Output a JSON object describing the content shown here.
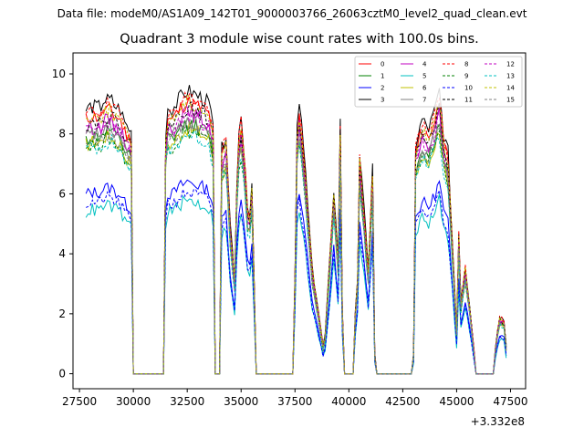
{
  "figure": {
    "suptitle": "Data file: modeM0/AS1A09_142T01_9000003766_26063cztM0_level2_quad_clean.evt"
  },
  "chart_data": {
    "type": "line",
    "title": "Quadrant 3 module wise count rates with 100.0s bins.",
    "xlabel": "",
    "ylabel": "",
    "x_offset_label": "+3.332e8",
    "xlim": [
      27200,
      48200
    ],
    "ylim": [
      -0.5,
      10.7
    ],
    "xticks": [
      27500,
      30000,
      32500,
      35000,
      37500,
      40000,
      42500,
      45000,
      47500
    ],
    "xtick_labels": [
      "27500",
      "30000",
      "32500",
      "35000",
      "37500",
      "40000",
      "42500",
      "45000",
      "47500"
    ],
    "yticks": [
      0,
      2,
      4,
      6,
      8,
      10
    ],
    "ytick_labels": [
      "0",
      "2",
      "4",
      "6",
      "8",
      "10"
    ],
    "grid": false,
    "legend_position": "top-right",
    "legend_columns": 4,
    "bin_seconds": 100,
    "segments": [
      [
        27800,
        29900,
        "on"
      ],
      [
        30000,
        31400,
        "zero"
      ],
      [
        31500,
        33700,
        "on"
      ],
      [
        33800,
        34000,
        "zero"
      ],
      [
        34100,
        35600,
        "on"
      ],
      [
        35700,
        37400,
        "zero"
      ],
      [
        37500,
        39700,
        "on"
      ],
      [
        39800,
        40200,
        "zero"
      ],
      [
        40300,
        41200,
        "on"
      ],
      [
        41300,
        42900,
        "zero"
      ],
      [
        43000,
        45800,
        "on"
      ],
      [
        45900,
        46700,
        "zero"
      ],
      [
        46800,
        47300,
        "on"
      ]
    ],
    "profile_knots": [
      [
        27800,
        8.3
      ],
      [
        28000,
        8.4
      ],
      [
        28500,
        8.6
      ],
      [
        29000,
        8.5
      ],
      [
        29400,
        8.3
      ],
      [
        29600,
        7.9
      ],
      [
        29900,
        7.6
      ],
      [
        31500,
        8.4
      ],
      [
        31800,
        8.3
      ],
      [
        32200,
        8.7
      ],
      [
        32500,
        8.9
      ],
      [
        32800,
        8.8
      ],
      [
        33100,
        8.7
      ],
      [
        33500,
        8.5
      ],
      [
        33700,
        7.8
      ],
      [
        34100,
        7.1
      ],
      [
        34300,
        7.5
      ],
      [
        34500,
        4.6
      ],
      [
        34700,
        3.0
      ],
      [
        34800,
        6.0
      ],
      [
        34950,
        8.4
      ],
      [
        35150,
        7.0
      ],
      [
        35350,
        4.6
      ],
      [
        35500,
        6.0
      ],
      [
        35600,
        3.2
      ],
      [
        37500,
        7.1
      ],
      [
        37700,
        8.4
      ],
      [
        37900,
        7.2
      ],
      [
        38100,
        5.2
      ],
      [
        38300,
        3.3
      ],
      [
        38500,
        2.4
      ],
      [
        38700,
        1.4
      ],
      [
        38800,
        0.9
      ],
      [
        38900,
        1.2
      ],
      [
        39100,
        3.5
      ],
      [
        39300,
        5.8
      ],
      [
        39500,
        3.6
      ],
      [
        39600,
        7.9
      ],
      [
        39700,
        2.0
      ],
      [
        40300,
        0.5
      ],
      [
        40400,
        3.0
      ],
      [
        40500,
        6.9
      ],
      [
        40700,
        5.2
      ],
      [
        40900,
        3.3
      ],
      [
        41100,
        6.5
      ],
      [
        41200,
        0.6
      ],
      [
        43000,
        2.8
      ],
      [
        43100,
        7.2
      ],
      [
        43400,
        8.0
      ],
      [
        43700,
        7.7
      ],
      [
        44000,
        8.3
      ],
      [
        44200,
        8.9
      ],
      [
        44400,
        7.5
      ],
      [
        44600,
        7.0
      ],
      [
        44800,
        4.2
      ],
      [
        45000,
        1.4
      ],
      [
        45100,
        4.5
      ],
      [
        45200,
        2.3
      ],
      [
        45400,
        3.4
      ],
      [
        45600,
        2.2
      ],
      [
        45800,
        0.8
      ],
      [
        46800,
        1.0
      ],
      [
        47000,
        1.8
      ],
      [
        47200,
        1.7
      ],
      [
        47300,
        0.9
      ]
    ],
    "series": [
      {
        "name": "0",
        "color": "#ff0000",
        "style": "solid",
        "scale": 1.02,
        "noise": 0.18,
        "seed": 11
      },
      {
        "name": "1",
        "color": "#008000",
        "style": "solid",
        "scale": 0.94,
        "noise": 0.18,
        "seed": 12
      },
      {
        "name": "2",
        "color": "#0000ff",
        "style": "solid",
        "scale": 0.72,
        "noise": 0.15,
        "seed": 13
      },
      {
        "name": "3",
        "color": "#000000",
        "style": "solid",
        "scale": 1.06,
        "noise": 0.18,
        "seed": 14
      },
      {
        "name": "4",
        "color": "#c000c0",
        "style": "solid",
        "scale": 0.98,
        "noise": 0.18,
        "seed": 15
      },
      {
        "name": "5",
        "color": "#00c0c0",
        "style": "solid",
        "scale": 0.65,
        "noise": 0.16,
        "seed": 16
      },
      {
        "name": "6",
        "color": "#c0c000",
        "style": "solid",
        "scale": 0.92,
        "noise": 0.18,
        "seed": 17
      },
      {
        "name": "7",
        "color": "#808080",
        "style": "solid",
        "scale": 0.95,
        "noise": 0.18,
        "seed": 18
      },
      {
        "name": "8",
        "color": "#ff0000",
        "style": "dashed",
        "scale": 1.04,
        "noise": 0.18,
        "seed": 19
      },
      {
        "name": "9",
        "color": "#008000",
        "style": "dashed",
        "scale": 0.91,
        "noise": 0.18,
        "seed": 20
      },
      {
        "name": "10",
        "color": "#0000ff",
        "style": "dashed",
        "scale": 0.68,
        "noise": 0.15,
        "seed": 21
      },
      {
        "name": "11",
        "color": "#000000",
        "style": "dashed",
        "scale": 1.0,
        "noise": 0.18,
        "seed": 22
      },
      {
        "name": "12",
        "color": "#c000c0",
        "style": "dashed",
        "scale": 0.97,
        "noise": 0.18,
        "seed": 23
      },
      {
        "name": "13",
        "color": "#00c0c0",
        "style": "dashed",
        "scale": 0.9,
        "noise": 0.18,
        "seed": 24
      },
      {
        "name": "14",
        "color": "#c0c000",
        "style": "dashed",
        "scale": 1.02,
        "noise": 0.18,
        "seed": 25
      },
      {
        "name": "15",
        "color": "#808080",
        "style": "dashed",
        "scale": 0.93,
        "noise": 0.18,
        "seed": 26
      }
    ]
  }
}
